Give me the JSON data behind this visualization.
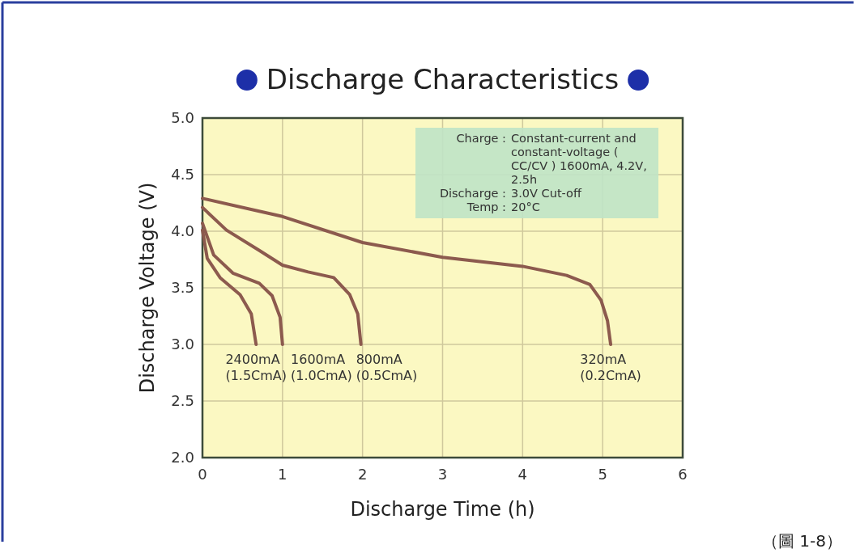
{
  "chart_data": {
    "type": "line",
    "title": "Discharge Characteristics",
    "xlabel": "Discharge Time (h)",
    "ylabel": "Discharge Voltage (V)",
    "xlim": [
      0,
      6
    ],
    "xticks": [
      0,
      1,
      2,
      3,
      4,
      5,
      6
    ],
    "ylim": [
      2.0,
      5.0
    ],
    "yticks": [
      {
        "value": 2.0,
        "label": "2.0"
      },
      {
        "value": 2.5,
        "label": "2.5"
      },
      {
        "value": 3.0,
        "label": "3.0"
      },
      {
        "value": 3.5,
        "label": "3.5"
      },
      {
        "value": 4.0,
        "label": "4.0"
      },
      {
        "value": 4.5,
        "label": "4.5"
      },
      {
        "value": 5.0,
        "label": "5.0"
      }
    ],
    "grid": true,
    "line_style": "solid",
    "series": [
      {
        "name": "2400mA (1.5CmA)",
        "color": "#8c5a4e",
        "x": [
          0,
          0.06,
          0.22,
          0.47,
          0.61,
          0.67
        ],
        "values": [
          4.01,
          3.76,
          3.59,
          3.44,
          3.27,
          3.0
        ]
      },
      {
        "name": "1600mA (1.0CmA)",
        "color": "#8c5a4e",
        "x": [
          0,
          0.14,
          0.38,
          0.71,
          0.87,
          0.97,
          1.0
        ],
        "values": [
          4.07,
          3.79,
          3.63,
          3.54,
          3.43,
          3.24,
          3.0
        ]
      },
      {
        "name": "800mA (0.5CmA)",
        "color": "#8c5a4e",
        "x": [
          0,
          0.3,
          0.71,
          1.0,
          1.32,
          1.64,
          1.84,
          1.94,
          1.98
        ],
        "values": [
          4.21,
          4.01,
          3.83,
          3.7,
          3.64,
          3.59,
          3.44,
          3.27,
          3.0
        ]
      },
      {
        "name": "320mA (0.2CmA)",
        "color": "#8c5a4e",
        "x": [
          0,
          1,
          2,
          3,
          4,
          4.55,
          4.84,
          4.98,
          5.06,
          5.1
        ],
        "values": [
          4.29,
          4.13,
          3.9,
          3.77,
          3.69,
          3.61,
          3.53,
          3.39,
          3.21,
          3.0
        ]
      }
    ],
    "annotations": [
      "Charge : Constant-current and constant-voltage ( CC/CV ) 1600mA, 4.2V, 2.5h",
      "Discharge : 3.0V Cut-off",
      "Temp : 20°C",
      "（圖 1-8）"
    ]
  }
}
